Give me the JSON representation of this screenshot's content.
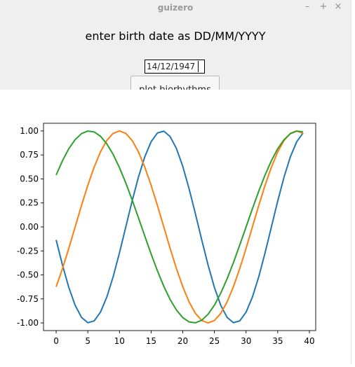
{
  "window": {
    "title": "guizero",
    "controls": [
      "–",
      "+",
      "×"
    ]
  },
  "app": {
    "prompt": "enter birth date as DD/MM/YYYY",
    "date_value": "14/12/1947",
    "button_label": "plot biorhythms"
  },
  "colors": {
    "physical": "#1f77b4",
    "emotional": "#ff7f0e",
    "intellectual": "#2ca02c"
  },
  "chart_data": {
    "type": "line",
    "title": "",
    "xlabel": "",
    "ylabel": "",
    "xlim": [
      -2,
      41
    ],
    "ylim": [
      -1.08,
      1.08
    ],
    "xticks": [
      0,
      5,
      10,
      15,
      20,
      25,
      30,
      35,
      40
    ],
    "yticks": [
      -1.0,
      -0.75,
      -0.5,
      -0.25,
      0.0,
      0.25,
      0.5,
      0.75,
      1.0
    ],
    "x": [
      0,
      1,
      2,
      3,
      4,
      5,
      6,
      7,
      8,
      9,
      10,
      11,
      12,
      13,
      14,
      15,
      16,
      17,
      18,
      19,
      20,
      21,
      22,
      23,
      24,
      25,
      26,
      27,
      28,
      29,
      30,
      31,
      32,
      33,
      34,
      35,
      36,
      37,
      38,
      39
    ],
    "series": [
      {
        "color": "#1f77b4",
        "values": [
          -0.136,
          -0.398,
          -0.631,
          -0.817,
          -0.942,
          -0.998,
          -0.979,
          -0.888,
          -0.731,
          -0.52,
          -0.27,
          0.0,
          0.27,
          0.52,
          0.731,
          0.888,
          0.979,
          0.998,
          0.942,
          0.817,
          0.631,
          0.398,
          0.136,
          -0.136,
          -0.398,
          -0.631,
          -0.817,
          -0.942,
          -0.998,
          -0.979,
          -0.888,
          -0.731,
          -0.52,
          -0.27,
          0.0,
          0.27,
          0.52,
          0.731,
          0.888,
          0.979
        ]
      },
      {
        "color": "#ff7f0e",
        "values": [
          -0.623,
          -0.434,
          -0.223,
          0.0,
          0.223,
          0.434,
          0.623,
          0.782,
          0.901,
          0.975,
          1.0,
          0.975,
          0.901,
          0.782,
          0.623,
          0.434,
          0.223,
          0.0,
          -0.223,
          -0.434,
          -0.623,
          -0.782,
          -0.901,
          -0.975,
          -1.0,
          -0.975,
          -0.901,
          -0.782,
          -0.623,
          -0.434,
          -0.223,
          0.0,
          0.223,
          0.434,
          0.623,
          0.782,
          0.901,
          0.975,
          1.0,
          0.975
        ]
      },
      {
        "color": "#2ca02c",
        "values": [
          0.541,
          0.69,
          0.815,
          0.91,
          0.972,
          0.999,
          0.99,
          0.945,
          0.866,
          0.756,
          0.618,
          0.458,
          0.282,
          0.095,
          -0.095,
          -0.282,
          -0.458,
          -0.618,
          -0.756,
          -0.866,
          -0.945,
          -0.99,
          -0.999,
          -0.972,
          -0.91,
          -0.815,
          -0.69,
          -0.541,
          -0.372,
          -0.189,
          0.0,
          0.189,
          0.372,
          0.541,
          0.69,
          0.815,
          0.91,
          0.972,
          0.999,
          0.99
        ]
      }
    ]
  }
}
